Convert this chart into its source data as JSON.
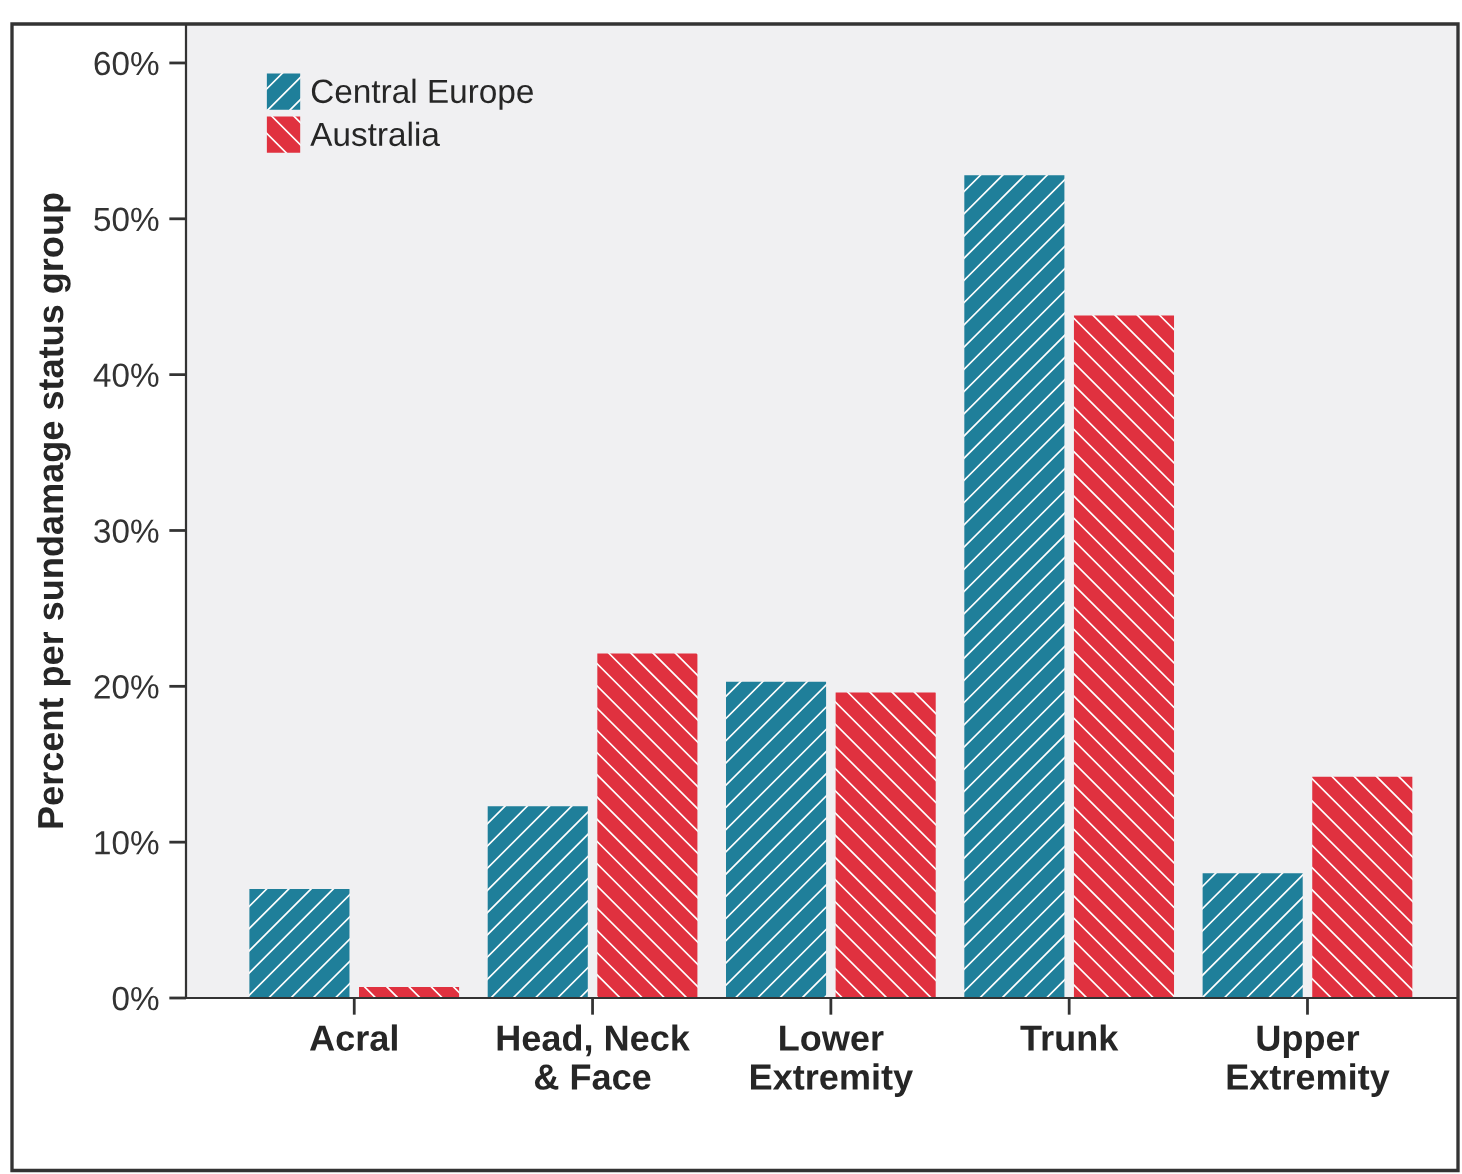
{
  "chart_data": {
    "type": "bar",
    "ylabel": "Percent per sundamage status group",
    "categories": [
      "Acral",
      "Head, Neck\n& Face",
      "Lower\nExtremity",
      "Trunk",
      "Upper\nExtremity"
    ],
    "series": [
      {
        "name": "Central Europe",
        "color": "#1f7f9a",
        "values": [
          7.0,
          12.3,
          20.3,
          52.8,
          8.0
        ]
      },
      {
        "name": "Australia",
        "color": "#e0313f",
        "values": [
          0.7,
          22.1,
          19.6,
          43.8,
          14.2
        ]
      }
    ],
    "ylim": [
      0,
      62.5
    ],
    "yticks": [
      {
        "value": 0,
        "label": "0%"
      },
      {
        "value": 10,
        "label": "10%"
      },
      {
        "value": 20,
        "label": "20%"
      },
      {
        "value": 30,
        "label": "30%"
      },
      {
        "value": 40,
        "label": "40%"
      },
      {
        "value": 50,
        "label": "50%"
      },
      {
        "value": 60,
        "label": "60%"
      }
    ],
    "legend": "top left",
    "grid": false
  }
}
